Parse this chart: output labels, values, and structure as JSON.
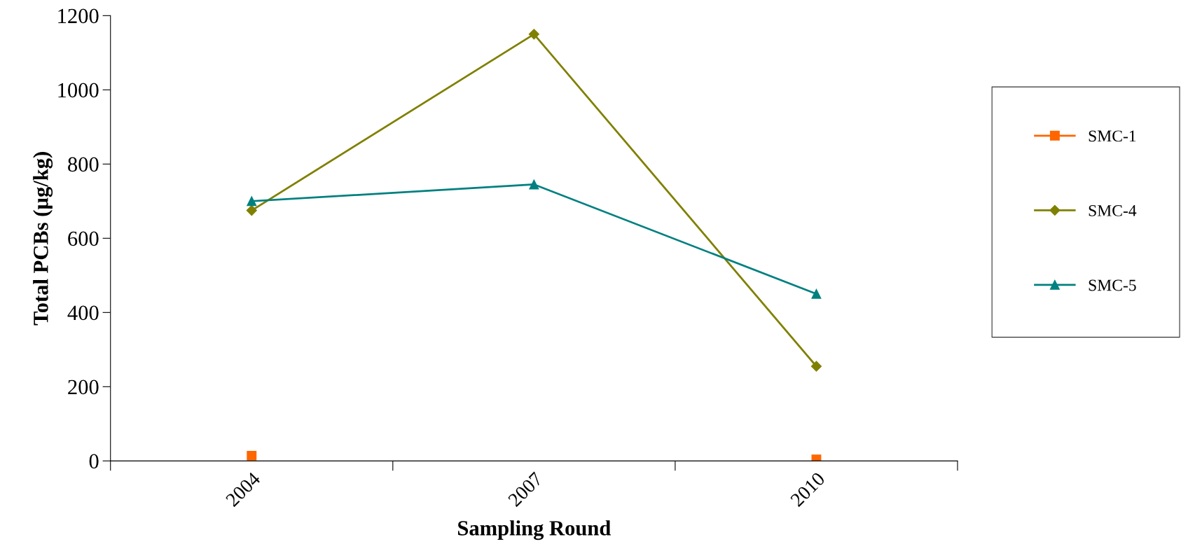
{
  "chart_data": {
    "type": "line",
    "xlabel": "Sampling Round",
    "ylabel": "Total PCBs (µg/kg)",
    "categories": [
      "2004",
      "2007",
      "2010"
    ],
    "series": [
      {
        "name": "SMC-1",
        "type": "scatter",
        "color": "#ff6600",
        "marker": "square",
        "values": [
          14,
          null,
          4
        ]
      },
      {
        "name": "SMC-4",
        "color": "#808000",
        "marker": "diamond",
        "values": [
          675,
          1150,
          255
        ]
      },
      {
        "name": "SMC-5",
        "color": "#008080",
        "marker": "triangle",
        "values": [
          700,
          745,
          450
        ]
      }
    ],
    "ylim": [
      0,
      1200
    ],
    "yticks": [
      0,
      200,
      400,
      600,
      800,
      1000,
      1200
    ],
    "grid": false,
    "legend": "right",
    "line_style": "solid"
  }
}
